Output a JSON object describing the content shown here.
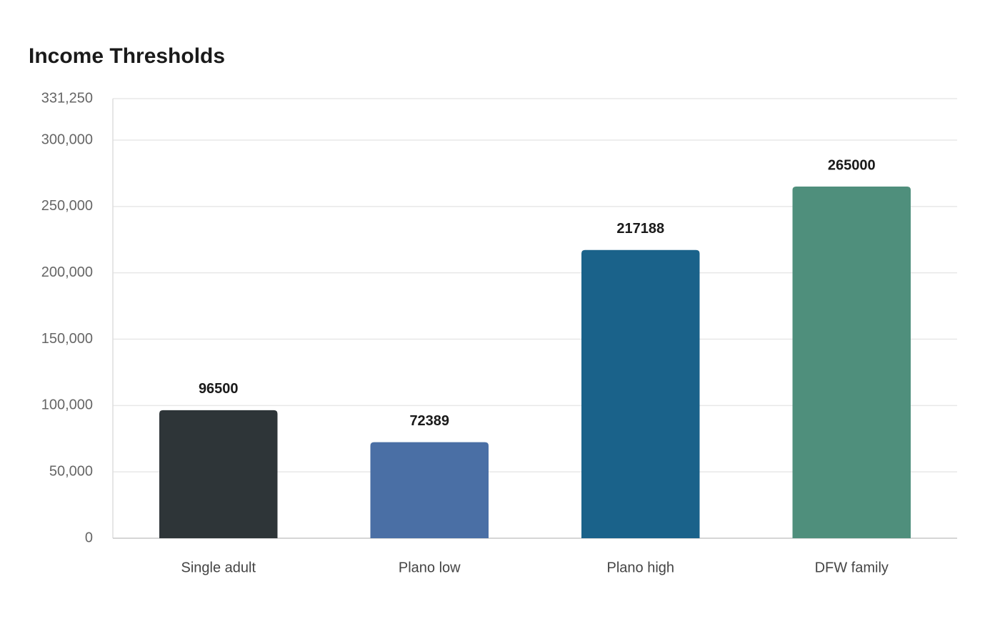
{
  "chart_data": {
    "type": "bar",
    "title": "Income Thresholds",
    "categories": [
      "Single adult",
      "Plano low",
      "Plano high",
      "DFW family"
    ],
    "values": [
      96500,
      72389,
      217188,
      265000
    ],
    "colors": [
      "#2e3538",
      "#4a6fa5",
      "#1a628a",
      "#4f8f7c"
    ],
    "ylim": [
      0,
      331250
    ],
    "yticks": [
      0,
      {
        "value": 50000,
        "label": "50,000"
      },
      {
        "value": 100000,
        "label": "100,000"
      },
      {
        "value": 150000,
        "label": "150,000"
      },
      {
        "value": 200000,
        "label": "200,000"
      },
      {
        "value": 250000,
        "label": "250,000"
      },
      {
        "value": 300000,
        "label": "300,000"
      },
      {
        "value": 331250,
        "label": "331,250"
      }
    ],
    "grid": true
  }
}
